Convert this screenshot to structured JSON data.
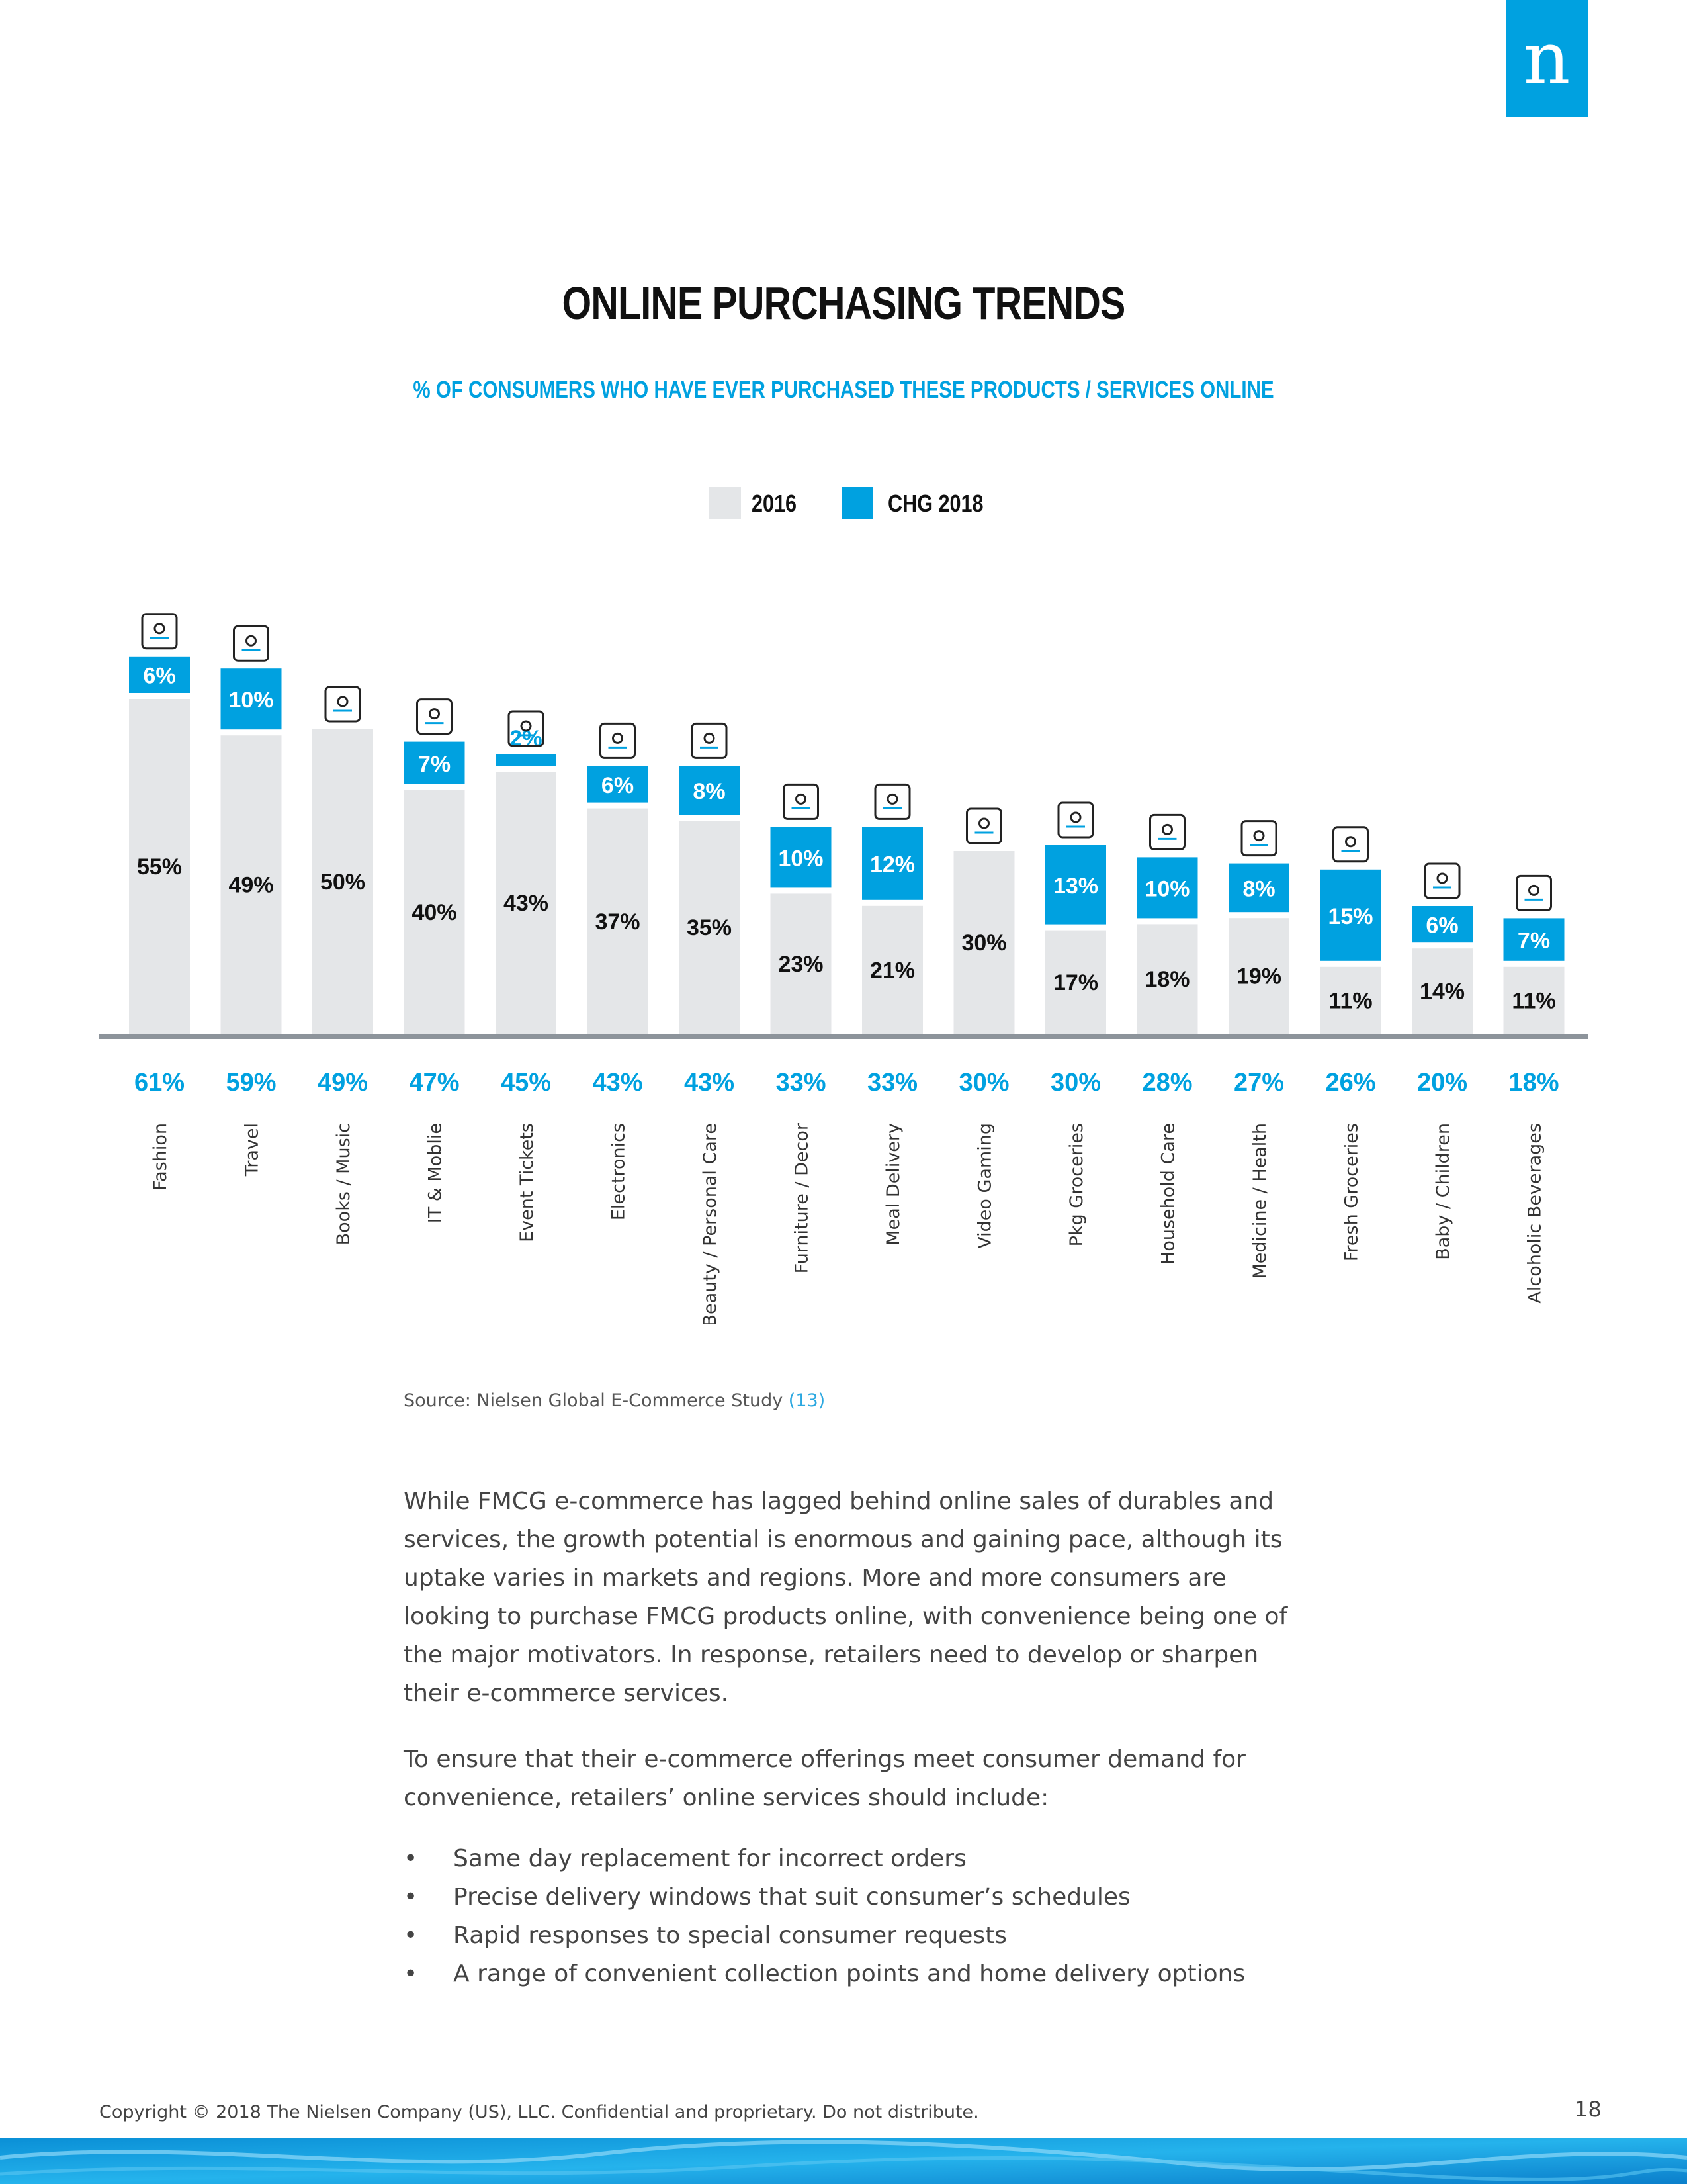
{
  "logo": {
    "glyph": "n"
  },
  "title": "ONLINE PURCHASING TRENDS",
  "subtitle": "% OF CONSUMERS WHO HAVE EVER PURCHASED THESE PRODUCTS / SERVICES ONLINE",
  "legend": [
    {
      "label": "2016",
      "color": "#e4e6e8"
    },
    {
      "label": "CHG 2018",
      "color": "#00a1e0"
    }
  ],
  "chart_data": {
    "type": "bar",
    "stacked": true,
    "title": "ONLINE PURCHASING TRENDS",
    "ylabel": "",
    "ylim": [
      0,
      80
    ],
    "categories": [
      "Fashion",
      "Travel",
      "Books / Music",
      "IT & Moblie",
      "Event Tickets",
      "Electronics",
      "Beauty / Personal Care",
      "Furniture / Decor",
      "Meal Delivery",
      "Video Gaming",
      "Pkg Groceries",
      "Household Care",
      "Medicine / Health",
      "Fresh Groceries",
      "Baby / Children",
      "Alcoholic Beverages"
    ],
    "icons": [
      "dress-icon",
      "plane-icon",
      "book-music-icon",
      "tablet-icon",
      "theater-icon",
      "devices-icon",
      "compact-mirror-icon",
      "armchair-icon",
      "meal-box-icon",
      "gamepad-icon",
      "grocery-bag-icon",
      "spray-bottle-icon",
      "medicine-jar-icon",
      "vegetables-icon",
      "baby-food-icon",
      "bottles-icon"
    ],
    "series": [
      {
        "name": "2016",
        "color": "#e4e6e8",
        "values": [
          55,
          49,
          50,
          40,
          43,
          37,
          35,
          23,
          21,
          30,
          17,
          18,
          19,
          11,
          14,
          11
        ],
        "labels": [
          "55%",
          "49%",
          "50%",
          "40%",
          "43%",
          "37%",
          "35%",
          "23%",
          "21%",
          "30%",
          "17%",
          "18%",
          "19%",
          "11%",
          "14%",
          "11%"
        ]
      },
      {
        "name": "CHG 2018",
        "color": "#00a1e0",
        "values": [
          6,
          10,
          null,
          7,
          2,
          6,
          8,
          10,
          12,
          null,
          13,
          10,
          8,
          15,
          6,
          7
        ],
        "labels": [
          "6%",
          "10%",
          "",
          "7%",
          "2%",
          "6%",
          "8%",
          "10%",
          "12%",
          "",
          "13%",
          "10%",
          "8%",
          "15%",
          "6%",
          "7%"
        ]
      }
    ],
    "totals": [
      "61%",
      "59%",
      "49%",
      "47%",
      "45%",
      "43%",
      "43%",
      "33%",
      "33%",
      "30%",
      "30%",
      "28%",
      "27%",
      "26%",
      "20%",
      "18%"
    ]
  },
  "source": {
    "text": "Source: Nielsen Global E-Commerce Study",
    "ref": "(13)"
  },
  "paragraphs": [
    "While FMCG e-commerce has lagged behind online sales of durables and services, the growth potential is enormous and gaining pace, although its uptake varies in markets and regions. More and more consumers are looking to purchase FMCG products online, with convenience being one of the major motivators. In response, retailers need to develop or sharpen their e-commerce services.",
    "To ensure that their e-commerce offerings meet consumer demand for convenience, retailers’ online services should include:"
  ],
  "bullets": [
    "Same day replacement for incorrect orders",
    "Precise delivery windows that suit consumer’s schedules",
    "Rapid responses to special consumer requests",
    "A range of convenient collection points and home delivery options"
  ],
  "bullet_glyph": "•",
  "footer": "Copyright © 2018 The Nielsen Company (US), LLC. Confidential and proprietary. Do not distribute.",
  "page_number": "18"
}
